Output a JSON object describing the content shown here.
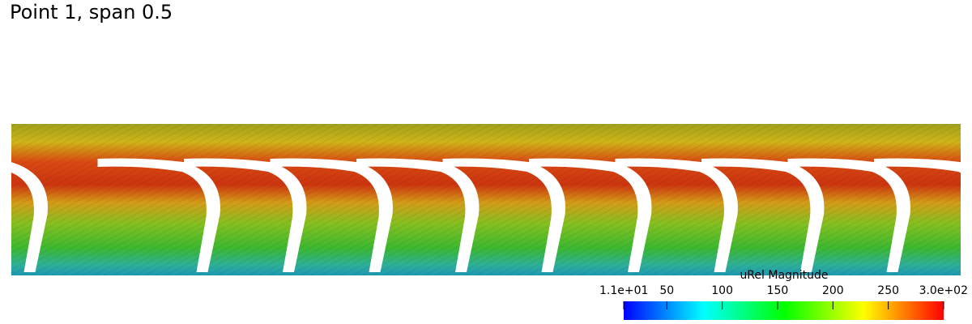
{
  "title": "Point 1, span 0.5",
  "colorbar": {
    "title": "uRel Magnitude",
    "range": [
      11,
      300
    ],
    "ticks": [
      {
        "value": 11,
        "label": "1.1e+01"
      },
      50,
      100,
      150,
      200,
      250,
      {
        "value": 300,
        "label": "3.0e+02"
      }
    ],
    "colors": [
      "#0000ff",
      "#00ffff",
      "#00ff00",
      "#ffff00",
      "#ff0000"
    ]
  }
}
